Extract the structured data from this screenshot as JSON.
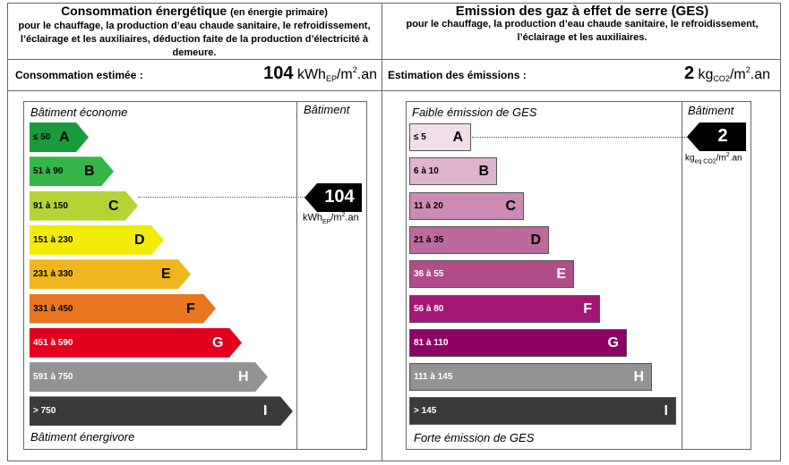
{
  "energy": {
    "title": "Consommation énergétique",
    "title_suffix": "(en énergie primaire)",
    "subtitle": "pour le chauffage, la production d’eau chaude sanitaire, le refroidissement, l’éclairage et les auxiliaires, déduction faite de la production d’électricité à demeure.",
    "estimate_label": "Consommation estimée :",
    "value": "104",
    "unit": "kWh",
    "unit_sub": "EP",
    "unit_mid": "/m",
    "unit_sup": "2",
    "unit_end": ".an",
    "top_label": "Bâtiment économe",
    "bottom_label": "Bâtiment énergivore",
    "column_label": "Bâtiment",
    "arrow_value": "104",
    "arrow_unit": "kWh",
    "arrow_unit_sub": "EP",
    "arrow_unit_rest": "/m",
    "arrow_unit_sup": "2",
    "arrow_unit_end": ".an",
    "current_class": "C",
    "classes": [
      {
        "range": "≤ 50",
        "letter": "A",
        "color": "#1a9a3c",
        "text_color": "#000000"
      },
      {
        "range": "51 à 90",
        "letter": "B",
        "color": "#35b649",
        "text_color": "#000000"
      },
      {
        "range": "91 à 150",
        "letter": "C",
        "color": "#b5d334",
        "text_color": "#000000"
      },
      {
        "range": "151 à 230",
        "letter": "D",
        "color": "#f2ec08",
        "text_color": "#000000"
      },
      {
        "range": "231 à 330",
        "letter": "E",
        "color": "#efb71d",
        "text_color": "#000000"
      },
      {
        "range": "331 à 450",
        "letter": "F",
        "color": "#e8761f",
        "text_color": "#000000"
      },
      {
        "range": "451 à 590",
        "letter": "G",
        "color": "#e3001d",
        "text_color": "#ffffff"
      },
      {
        "range": "591 à 750",
        "letter": "H",
        "color": "#939393",
        "text_color": "#ffffff"
      },
      {
        "range": "> 750",
        "letter": "I",
        "color": "#3a3a3a",
        "text_color": "#ffffff"
      }
    ]
  },
  "ges": {
    "title": "Emission des gaz à effet de serre (GES)",
    "subtitle": "pour le chauffage, la production d’eau chaude sanitaire, le refroidissement, l’éclairage et les auxiliaires.",
    "estimate_label": "Estimation des émissions :",
    "value": "2",
    "unit": "kg",
    "unit_sub": "CO2",
    "unit_mid": "/m",
    "unit_sup": "2",
    "unit_end": ".an",
    "top_label": "Faible émission de GES",
    "bottom_label": "Forte émission de GES",
    "column_label": "Bâtiment",
    "arrow_value": "2",
    "arrow_unit": "kg",
    "arrow_unit_sub": "eq CO2",
    "arrow_unit_rest": "/m",
    "arrow_unit_sup": "2",
    "arrow_unit_end": ".an",
    "current_class": "A",
    "classes": [
      {
        "range": "≤ 5",
        "letter": "A",
        "color": "#f0dfe9",
        "text_color": "#000000"
      },
      {
        "range": "6 à 10",
        "letter": "B",
        "color": "#deb4ce",
        "text_color": "#000000"
      },
      {
        "range": "11 à 20",
        "letter": "C",
        "color": "#cc8bb2",
        "text_color": "#000000"
      },
      {
        "range": "21 à 35",
        "letter": "D",
        "color": "#bc6a9b",
        "text_color": "#000000"
      },
      {
        "range": "36 à 55",
        "letter": "E",
        "color": "#b04d88",
        "text_color": "#ffffff"
      },
      {
        "range": "56 à 80",
        "letter": "F",
        "color": "#a21874",
        "text_color": "#ffffff"
      },
      {
        "range": "81 à 110",
        "letter": "G",
        "color": "#8e0265",
        "text_color": "#ffffff"
      },
      {
        "range": "111 à 145",
        "letter": "H",
        "color": "#939393",
        "text_color": "#ffffff"
      },
      {
        "range": "> 145",
        "letter": "I",
        "color": "#3a3a3a",
        "text_color": "#ffffff"
      }
    ]
  }
}
